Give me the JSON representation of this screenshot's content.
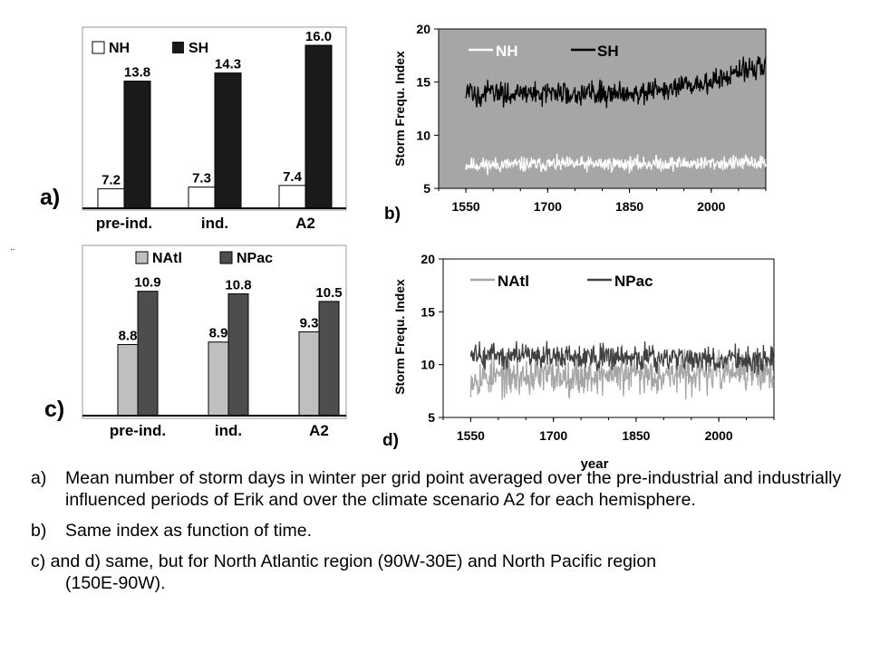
{
  "chart_data": [
    {
      "panel": "a)",
      "type": "bar",
      "categories": [
        "pre-ind.",
        "ind.",
        "A2"
      ],
      "series": [
        {
          "name": "NH",
          "values": [
            7.2,
            7.3,
            7.4
          ],
          "color": "#ffffff"
        },
        {
          "name": "SH",
          "values": [
            13.8,
            14.3,
            16.0
          ],
          "color": "#1a1a1a"
        }
      ],
      "data_labels": [
        [
          "7.2",
          "7.3",
          "7.4"
        ],
        [
          "13.8",
          "14.3",
          "16.0"
        ]
      ],
      "ylim": [
        6,
        17
      ],
      "legend": "top-left",
      "grid": false
    },
    {
      "panel": "b)",
      "type": "line",
      "ylabel": "Storm Frequ. Index",
      "xlim": [
        1500,
        2100
      ],
      "ylim": [
        5,
        20
      ],
      "xticks": [
        1550,
        1700,
        1850,
        2000
      ],
      "yticks": [
        5,
        10,
        15,
        20
      ],
      "background": "#a6a6a6",
      "series": [
        {
          "name": "NH",
          "color": "#ffffff",
          "start": 1550,
          "end": 2100,
          "mean": 7.3,
          "noise": 0.35,
          "trend": [
            [
              1550,
              7.2
            ],
            [
              2100,
              7.4
            ]
          ]
        },
        {
          "name": "SH",
          "color": "#000000",
          "start": 1550,
          "end": 2100,
          "mean": 14.0,
          "noise": 0.55,
          "trend": [
            [
              1550,
              13.9
            ],
            [
              1800,
              14.0
            ],
            [
              1900,
              14.1
            ],
            [
              2000,
              15.0
            ],
            [
              2100,
              16.8
            ]
          ]
        }
      ],
      "legend": "top"
    },
    {
      "panel": "c)",
      "type": "bar",
      "categories": [
        "pre-ind.",
        "ind.",
        "A2"
      ],
      "series": [
        {
          "name": "NAtl",
          "values": [
            8.8,
            8.9,
            9.3
          ],
          "color": "#bfbfbf"
        },
        {
          "name": "NPac",
          "values": [
            10.9,
            10.8,
            10.5
          ],
          "color": "#4d4d4d"
        }
      ],
      "data_labels": [
        [
          "8.8",
          "8.9",
          "9.3"
        ],
        [
          "10.9",
          "10.8",
          "10.5"
        ]
      ],
      "ylim": [
        6,
        12.6
      ],
      "legend": "top",
      "grid": false
    },
    {
      "panel": "d)",
      "type": "line",
      "ylabel": "Storm Frequ. Index",
      "xlabel": "year",
      "xlim": [
        1500,
        2100
      ],
      "ylim": [
        5,
        20
      ],
      "xticks": [
        1550,
        1700,
        1850,
        2000
      ],
      "yticks": [
        5,
        10,
        15,
        20
      ],
      "background": "#ffffff",
      "series": [
        {
          "name": "NAtl",
          "color": "#a6a6a6",
          "start": 1550,
          "end": 2100,
          "mean": 8.9,
          "noise": 0.9,
          "trend": [
            [
              1550,
              8.8
            ],
            [
              2100,
              9.3
            ]
          ]
        },
        {
          "name": "NPac",
          "color": "#404040",
          "start": 1550,
          "end": 2100,
          "mean": 10.8,
          "noise": 0.6,
          "trend": [
            [
              1550,
              10.9
            ],
            [
              2100,
              10.5
            ]
          ]
        }
      ],
      "legend": "top"
    }
  ],
  "caption": {
    "a": {
      "label": "a)",
      "text": "Mean number of storm days in winter per grid point averaged over the pre-industrial and industrially influenced periods of Erik and over the climate scenario A2 for each hemisphere."
    },
    "b": {
      "label": "b)",
      "text": "Same index as function of time."
    },
    "c": {
      "first": "c) and d) same,  but for North Atlantic region (90W-30E) and North Pacific region",
      "second": "(150E-90W)."
    }
  }
}
